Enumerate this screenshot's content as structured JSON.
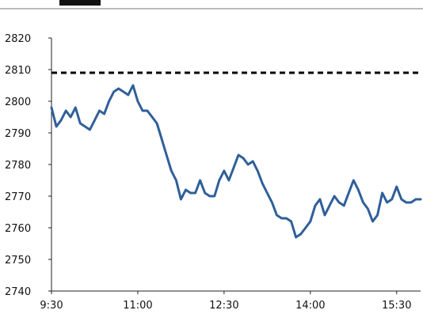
{
  "chart_data": {
    "type": "line",
    "title": "",
    "xlabel": "",
    "ylabel": "",
    "ylim": [
      2740,
      2820
    ],
    "yticks": [
      2740,
      2750,
      2760,
      2770,
      2780,
      2790,
      2800,
      2810,
      2820
    ],
    "xrange": [
      "9:30",
      "15:55"
    ],
    "xticks": [
      "9:30",
      "11:00",
      "12:30",
      "14:00",
      "15:30"
    ],
    "reference_line": {
      "y": 2809,
      "style": "dashed",
      "color": "#000000"
    },
    "series": [
      {
        "color": "#2f5f9a",
        "points": [
          [
            "9:30",
            2798
          ],
          [
            "9:35",
            2792
          ],
          [
            "9:40",
            2794
          ],
          [
            "9:45",
            2797
          ],
          [
            "9:50",
            2795
          ],
          [
            "9:55",
            2798
          ],
          [
            "10:00",
            2793
          ],
          [
            "10:05",
            2792
          ],
          [
            "10:10",
            2791
          ],
          [
            "10:15",
            2794
          ],
          [
            "10:20",
            2797
          ],
          [
            "10:25",
            2796
          ],
          [
            "10:30",
            2800
          ],
          [
            "10:35",
            2803
          ],
          [
            "10:40",
            2804
          ],
          [
            "10:45",
            2803
          ],
          [
            "10:50",
            2802
          ],
          [
            "10:55",
            2805
          ],
          [
            "11:00",
            2800
          ],
          [
            "11:05",
            2797
          ],
          [
            "11:10",
            2797
          ],
          [
            "11:15",
            2795
          ],
          [
            "11:20",
            2793
          ],
          [
            "11:25",
            2788
          ],
          [
            "11:30",
            2783
          ],
          [
            "11:35",
            2778
          ],
          [
            "11:40",
            2775
          ],
          [
            "11:45",
            2769
          ],
          [
            "11:50",
            2772
          ],
          [
            "11:55",
            2771
          ],
          [
            "12:00",
            2771
          ],
          [
            "12:05",
            2775
          ],
          [
            "12:10",
            2771
          ],
          [
            "12:15",
            2770
          ],
          [
            "12:20",
            2770
          ],
          [
            "12:25",
            2775
          ],
          [
            "12:30",
            2778
          ],
          [
            "12:35",
            2775
          ],
          [
            "12:40",
            2779
          ],
          [
            "12:45",
            2783
          ],
          [
            "12:50",
            2782
          ],
          [
            "12:55",
            2780
          ],
          [
            "13:00",
            2781
          ],
          [
            "13:05",
            2778
          ],
          [
            "13:10",
            2774
          ],
          [
            "13:15",
            2771
          ],
          [
            "13:20",
            2768
          ],
          [
            "13:25",
            2764
          ],
          [
            "13:30",
            2763
          ],
          [
            "13:35",
            2763
          ],
          [
            "13:40",
            2762
          ],
          [
            "13:45",
            2757
          ],
          [
            "13:50",
            2758
          ],
          [
            "13:55",
            2760
          ],
          [
            "14:00",
            2762
          ],
          [
            "14:05",
            2767
          ],
          [
            "14:10",
            2769
          ],
          [
            "14:15",
            2764
          ],
          [
            "14:20",
            2767
          ],
          [
            "14:25",
            2770
          ],
          [
            "14:30",
            2768
          ],
          [
            "14:35",
            2767
          ],
          [
            "14:40",
            2771
          ],
          [
            "14:45",
            2775
          ],
          [
            "14:50",
            2772
          ],
          [
            "14:55",
            2768
          ],
          [
            "15:00",
            2766
          ],
          [
            "15:05",
            2762
          ],
          [
            "15:10",
            2764
          ],
          [
            "15:15",
            2771
          ],
          [
            "15:20",
            2768
          ],
          [
            "15:25",
            2769
          ],
          [
            "15:30",
            2773
          ],
          [
            "15:35",
            2769
          ],
          [
            "15:40",
            2768
          ],
          [
            "15:45",
            2768
          ],
          [
            "15:50",
            2769
          ],
          [
            "15:55",
            2769
          ]
        ]
      }
    ]
  }
}
